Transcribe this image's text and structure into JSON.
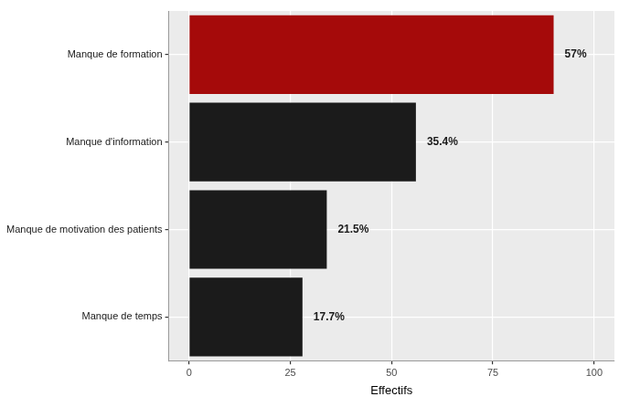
{
  "chart_data": {
    "type": "bar",
    "orientation": "horizontal",
    "categories": [
      "Manque de formation",
      "Manque d'information",
      "Manque de motivation des patients",
      "Manque de temps"
    ],
    "values": [
      90,
      56,
      34,
      28
    ],
    "percent_labels": [
      "57%",
      "35.4%",
      "21.5%",
      "17.7%"
    ],
    "colors": [
      "#a50a0a",
      "#1b1b1b",
      "#1b1b1b",
      "#1b1b1b"
    ],
    "x_label": "Effectifs",
    "xlim": [
      -5,
      105
    ],
    "xticks": [
      0,
      25,
      50,
      75,
      100
    ],
    "grid": true
  }
}
